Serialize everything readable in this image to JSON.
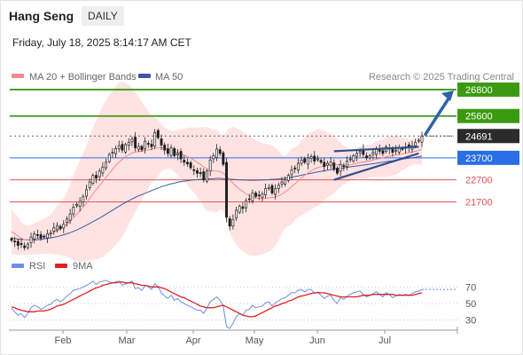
{
  "header": {
    "instrument": "Hang Seng",
    "timeframe": "DAILY",
    "datetime": "Friday, July 18, 2025 8:14:17 AM CET"
  },
  "legend": {
    "ma20_label": "MA 20 + Bollinger Bands",
    "ma50_label": "MA 50",
    "copyright": "Research © 2025 Trading Central",
    "rsi_label": "RSI",
    "rsi_ma_label": "9MA"
  },
  "colors": {
    "up_candle": "#ffffff",
    "down_candle": "#1a1a1a",
    "ma20": "#f28a8a",
    "ma50": "#3a5ba0",
    "bollinger_fill": "#ffe3e3",
    "resistance": "#3c9a12",
    "pivot": "#2a6ee6",
    "support": "#e55353",
    "last_price_bg": "#2b2b2b",
    "rsi": "#6b8ee8",
    "rsi_ma": "#dd2222",
    "trendline": "#2f4f8f",
    "forecast_arrow": "#2f63a8"
  },
  "chart_data": [
    {
      "type": "candlestick",
      "panel": "price",
      "x_axis": {
        "ticks": [
          "Feb",
          "Mar",
          "Apr",
          "May",
          "Jun",
          "Jul"
        ]
      },
      "y_range": [
        19500,
        27000
      ],
      "levels": [
        {
          "label": "26800",
          "value": 26800,
          "kind": "resistance"
        },
        {
          "label": "25600",
          "value": 25600,
          "kind": "resistance"
        },
        {
          "label": "24691",
          "value": 24691,
          "kind": "last"
        },
        {
          "label": "23700",
          "value": 23700,
          "kind": "pivot"
        },
        {
          "label": "22700",
          "value": 22700,
          "kind": "support"
        },
        {
          "label": "21700",
          "value": 21700,
          "kind": "support"
        }
      ],
      "last_price": 24691,
      "forecast_target": 26800,
      "series": [
        {
          "name": "MA 20 + Bollinger Bands"
        },
        {
          "name": "MA 50"
        }
      ],
      "close": [
        19950,
        19880,
        19720,
        19760,
        19620,
        19780,
        20100,
        20240,
        20180,
        20050,
        20120,
        20250,
        20300,
        20520,
        20620,
        20480,
        20680,
        20920,
        21150,
        21460,
        21580,
        21720,
        21930,
        22250,
        22600,
        22900,
        22780,
        23100,
        23280,
        23500,
        23850,
        23950,
        24120,
        24250,
        24050,
        24300,
        24400,
        24550,
        24150,
        24220,
        24060,
        24450,
        24350,
        24200,
        24850,
        24620,
        24280,
        24050,
        23900,
        24150,
        23800,
        23900,
        23650,
        23500,
        23420,
        23250,
        23150,
        23000,
        22980,
        22700,
        23100,
        23600,
        23800,
        24100,
        23900,
        23400,
        21000,
        20600,
        20900,
        21320,
        21500,
        21400,
        21750,
        21800,
        22100,
        21950,
        22000,
        22050,
        22300,
        22350,
        22100,
        22300,
        22450,
        22600,
        22700,
        22900,
        23150,
        23200,
        23450,
        23600,
        23500,
        23700,
        23750,
        23550,
        23650,
        23500,
        23300,
        23450,
        23500,
        23200,
        23000,
        23400,
        23300,
        23550,
        23650,
        23800,
        23900,
        24000,
        23850,
        23700,
        23800,
        23950,
        24100,
        24000,
        23900,
        24200,
        24100,
        23950,
        24050,
        24150,
        24100,
        24200,
        24150,
        24250,
        24400,
        24500,
        24691
      ],
      "ma20": [
        20350,
        20250,
        20150,
        20050,
        19980,
        19960,
        19980,
        20010,
        20050,
        20090,
        20130,
        20180,
        20230,
        20310,
        20400,
        20470,
        20560,
        20680,
        20820,
        20980,
        21130,
        21290,
        21460,
        21640,
        21850,
        22080,
        22250,
        22430,
        22620,
        22810,
        23000,
        23170,
        23350,
        23510,
        23630,
        23750,
        23840,
        23920,
        23960,
        23990,
        24000,
        24040,
        24070,
        24090,
        24130,
        24150,
        24160,
        24140,
        24090,
        24060,
        24000,
        23940,
        23880,
        23820,
        23760,
        23680,
        23600,
        23500,
        23400,
        23290,
        23200,
        23140,
        23110,
        23100,
        23080,
        23000,
        22880,
        22700,
        22550,
        22400,
        22280,
        22170,
        22060,
        21980,
        21920,
        21880,
        21860,
        21850,
        21860,
        21880,
        21900,
        21920,
        21980,
        22050,
        22150,
        22260,
        22400,
        22520,
        22650,
        22790,
        22900,
        23010,
        23110,
        23190,
        23260,
        23300,
        23340,
        23370,
        23400,
        23400,
        23390,
        23380,
        23370,
        23370,
        23380,
        23410,
        23450,
        23490,
        23510,
        23530,
        23560,
        23600,
        23640,
        23670,
        23700,
        23740,
        23770,
        23800,
        23830,
        23860,
        23880,
        23910,
        23930,
        23960,
        24000,
        24040,
        24090
      ],
      "ma50": [
        20050,
        20030,
        20010,
        19990,
        19980,
        19970,
        19970,
        19970,
        19980,
        20000,
        20020,
        20040,
        20060,
        20090,
        20120,
        20160,
        20200,
        20250,
        20300,
        20360,
        20420,
        20490,
        20560,
        20640,
        20720,
        20800,
        20880,
        20960,
        21050,
        21140,
        21230,
        21320,
        21410,
        21500,
        21590,
        21670,
        21750,
        21830,
        21900,
        21970,
        22030,
        22090,
        22150,
        22210,
        22270,
        22330,
        22390,
        22430,
        22480,
        22520,
        22550,
        22590,
        22620,
        22640,
        22660,
        22680,
        22700,
        22710,
        22720,
        22730,
        22740,
        22750,
        22760,
        22770,
        22770,
        22760,
        22750,
        22730,
        22720,
        22710,
        22700,
        22690,
        22690,
        22680,
        22680,
        22680,
        22690,
        22690,
        22700,
        22710,
        22720,
        22730,
        22740,
        22760,
        22780,
        22800,
        22820,
        22850,
        22880,
        22910,
        22940,
        22970,
        23000,
        23030,
        23060,
        23090,
        23110,
        23140,
        23160,
        23180,
        23200,
        23220,
        23240,
        23270,
        23290,
        23310,
        23330,
        23350,
        23370,
        23390,
        23410,
        23430,
        23450,
        23480,
        23500,
        23530,
        23550,
        23570,
        23590,
        23610,
        23640,
        23660,
        23680,
        23700,
        23720,
        23750,
        23780
      ],
      "trendlines": [
        {
          "from": [
            99,
            24000
          ],
          "to": [
            125,
            24200
          ]
        },
        {
          "from": [
            99,
            22700
          ],
          "to": [
            125,
            23900
          ]
        }
      ]
    },
    {
      "type": "line",
      "panel": "rsi",
      "y_ticks": [
        "70",
        "50",
        "30"
      ],
      "y_range": [
        20,
        80
      ],
      "series": [
        {
          "name": "RSI",
          "values": [
            44,
            40,
            36,
            38,
            33,
            38,
            45,
            48,
            46,
            43,
            45,
            48,
            49,
            53,
            55,
            52,
            55,
            59,
            62,
            66,
            67,
            68,
            70,
            72,
            74,
            77,
            73,
            76,
            77,
            78,
            76,
            75,
            76,
            77,
            72,
            74,
            75,
            77,
            68,
            69,
            66,
            72,
            70,
            67,
            74,
            70,
            63,
            59,
            56,
            60,
            54,
            56,
            52,
            50,
            48,
            46,
            44,
            42,
            42,
            38,
            45,
            52,
            55,
            58,
            54,
            47,
            22,
            20,
            26,
            34,
            38,
            36,
            42,
            43,
            48,
            45,
            46,
            47,
            51,
            52,
            47,
            51,
            53,
            56,
            57,
            60,
            63,
            63,
            66,
            67,
            64,
            67,
            67,
            62,
            64,
            60,
            56,
            59,
            60,
            54,
            50,
            57,
            55,
            59,
            61,
            63,
            64,
            65,
            61,
            58,
            60,
            62,
            64,
            61,
            58,
            63,
            61,
            57,
            59,
            61,
            60,
            61,
            60,
            62,
            64,
            65,
            67
          ]
        },
        {
          "name": "9MA",
          "values": [
            46,
            45,
            43,
            42,
            41,
            40,
            40,
            40,
            41,
            41,
            41,
            42,
            43,
            45,
            47,
            48,
            49,
            51,
            53,
            55,
            57,
            59,
            61,
            63,
            65,
            67,
            69,
            70,
            72,
            73,
            74,
            75,
            75,
            76,
            76,
            75,
            75,
            75,
            74,
            73,
            72,
            72,
            71,
            70,
            70,
            70,
            69,
            68,
            66,
            64,
            62,
            60,
            58,
            57,
            55,
            53,
            51,
            49,
            47,
            46,
            45,
            45,
            45,
            46,
            47,
            48,
            46,
            44,
            42,
            40,
            38,
            36,
            35,
            34,
            34,
            35,
            37,
            39,
            41,
            43,
            45,
            47,
            48,
            50,
            51,
            53,
            54,
            56,
            58,
            59,
            60,
            61,
            62,
            63,
            63,
            63,
            63,
            62,
            61,
            60,
            59,
            58,
            58,
            58,
            58,
            58,
            58,
            59,
            60,
            60,
            60,
            61,
            61,
            61,
            61,
            61,
            61,
            61,
            60,
            60,
            60,
            60,
            60,
            60,
            61,
            62,
            63
          ]
        }
      ]
    }
  ]
}
